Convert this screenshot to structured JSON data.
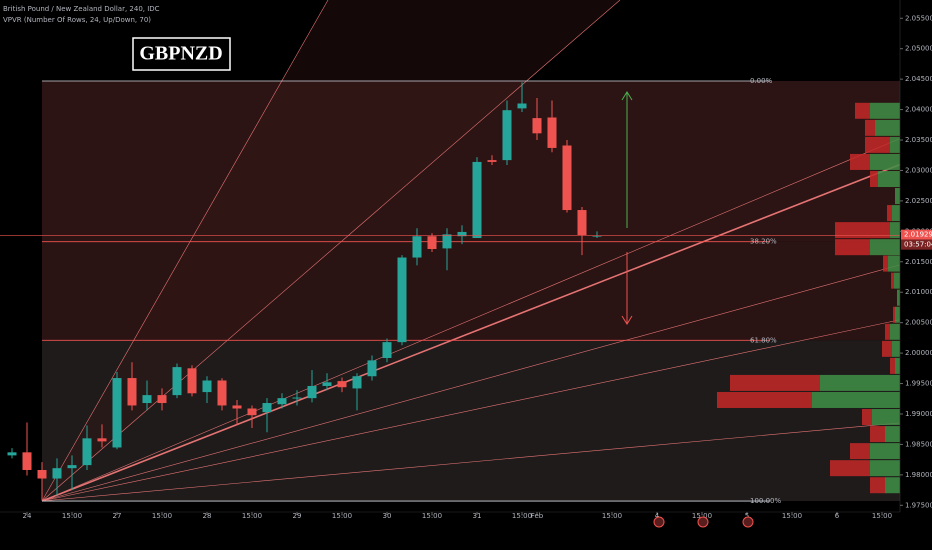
{
  "header": {
    "symbol_line": "British Pound / New Zealand Dollar, 240, IDC",
    "indicator_line": "VPVR (Number Of Rows, 24, Up/Down, 70)",
    "badge": "GBPNZD"
  },
  "chart_data": {
    "type": "candlestick",
    "up_color": "#26a69a",
    "down_color": "#ef5350",
    "open": [
      1.9832,
      1.9837,
      1.9808,
      1.9794,
      1.9811,
      1.9816,
      1.986,
      1.9845,
      1.9959,
      1.9918,
      1.9931,
      1.9931,
      1.9975,
      1.9936,
      1.9955,
      1.9914,
      1.9909,
      1.9903,
      1.9916,
      1.9926,
      1.9926,
      1.9946,
      1.9954,
      1.9942,
      1.9962,
      1.9992,
      2.0018,
      2.0157,
      2.0192,
      2.0172,
      2.0192,
      2.0189,
      2.0317,
      2.0317,
      2.0402,
      2.0386,
      2.0387,
      2.0341,
      2.0235,
      2.0192
    ],
    "high": [
      1.9844,
      1.9886,
      1.9821,
      1.9827,
      1.9832,
      1.9881,
      1.9883,
      1.9969,
      1.9985,
      1.9955,
      1.9942,
      1.9983,
      1.998,
      1.9962,
      1.9959,
      1.9923,
      1.9914,
      1.9926,
      1.9934,
      1.9939,
      1.9972,
      1.9967,
      1.996,
      1.9967,
      1.9996,
      2.0024,
      2.0161,
      2.0205,
      2.0197,
      2.0205,
      2.021,
      2.0322,
      2.0325,
      2.0415,
      2.0445,
      2.0419,
      2.0415,
      2.035,
      2.024,
      2.02
    ],
    "low": [
      1.9827,
      1.9799,
      1.9758,
      1.9766,
      1.9775,
      1.9808,
      1.9845,
      1.9842,
      1.9906,
      1.9906,
      1.9906,
      1.9926,
      1.9929,
      1.9918,
      1.9906,
      1.9881,
      1.9877,
      1.987,
      1.9909,
      1.9914,
      1.9919,
      1.9939,
      1.9936,
      1.9906,
      1.9955,
      1.9985,
      2.0013,
      2.0144,
      2.0166,
      2.0136,
      2.0179,
      2.0189,
      2.0309,
      2.0309,
      2.0396,
      2.035,
      2.033,
      2.0231,
      2.0161,
      2.0189
    ],
    "close": [
      1.9837,
      1.9808,
      1.9794,
      1.9811,
      1.9816,
      1.986,
      1.9855,
      1.9959,
      1.9914,
      1.9931,
      1.9918,
      1.9977,
      1.9934,
      1.9955,
      1.9914,
      1.9909,
      1.9898,
      1.9918,
      1.9926,
      1.9927,
      1.9946,
      1.9952,
      1.9944,
      1.9962,
      1.9988,
      2.0018,
      2.0157,
      2.0192,
      2.0171,
      2.0195,
      2.0199,
      2.0314,
      2.0314,
      2.0399,
      2.041,
      2.0361,
      2.0337,
      2.0235,
      2.0194,
      2.0193
    ],
    "xlim": [
      -0.8,
      59.2
    ],
    "xticks": [
      {
        "value": 1,
        "label": "24"
      },
      {
        "value": 4,
        "label": "15:00"
      },
      {
        "value": 7,
        "label": "27"
      },
      {
        "value": 10,
        "label": "15:00"
      },
      {
        "value": 13,
        "label": "28"
      },
      {
        "value": 16,
        "label": "15:00"
      },
      {
        "value": 19,
        "label": "29"
      },
      {
        "value": 22,
        "label": "15:00"
      },
      {
        "value": 25,
        "label": "30"
      },
      {
        "value": 28,
        "label": "15:00"
      },
      {
        "value": 31,
        "label": "31"
      },
      {
        "value": 34,
        "label": "15:00"
      },
      {
        "value": 35,
        "label": "Feb"
      },
      {
        "value": 40,
        "label": "15:00"
      },
      {
        "value": 43,
        "label": "4"
      },
      {
        "value": 46,
        "label": "15:00"
      },
      {
        "value": 49,
        "label": "5"
      },
      {
        "value": 52,
        "label": "15:00"
      },
      {
        "value": 55,
        "label": "6"
      },
      {
        "value": 58,
        "label": "15:00"
      }
    ],
    "ylim": [
      1.9739,
      2.058
    ],
    "yticks": [
      {
        "value": 1.975,
        "label": "1.97500"
      },
      {
        "value": 1.98,
        "label": "1.98000"
      },
      {
        "value": 1.985,
        "label": "1.98500"
      },
      {
        "value": 1.99,
        "label": "1.99000"
      },
      {
        "value": 1.995,
        "label": "1.99500"
      },
      {
        "value": 2.0,
        "label": "2.00000"
      },
      {
        "value": 2.005,
        "label": "2.00500"
      },
      {
        "value": 2.01,
        "label": "2.01000"
      },
      {
        "value": 2.015,
        "label": "2.01500"
      },
      {
        "value": 2.02,
        "label": "2.02000"
      },
      {
        "value": 2.025,
        "label": "2.02500"
      },
      {
        "value": 2.03,
        "label": "2.03000"
      },
      {
        "value": 2.035,
        "label": "2.03500"
      },
      {
        "value": 2.04,
        "label": "2.04000"
      },
      {
        "value": 2.045,
        "label": "2.04500"
      },
      {
        "value": 2.05,
        "label": "2.05000"
      },
      {
        "value": 2.055,
        "label": "2.05500"
      }
    ],
    "current_price": {
      "value": 2.01929,
      "label": "2.01929",
      "countdown": "03:57:04"
    },
    "fib_levels": [
      {
        "value": 2.0447,
        "label": "0.00%"
      },
      {
        "value": 2.0183,
        "label": "38.20%"
      },
      {
        "value": 2.0021,
        "label": "61.80%"
      },
      {
        "value": 1.9757,
        "label": "100.00%"
      }
    ],
    "volume_profile": {
      "prices": [
        2.0398,
        2.037,
        2.0342,
        2.0314,
        2.0286,
        2.0258,
        2.023,
        2.0202,
        2.0174,
        2.0147,
        2.0119,
        2.0091,
        2.0063,
        2.0035,
        2.0007,
        1.9979,
        1.9951,
        1.9923,
        1.9895,
        1.9867,
        1.9839,
        1.9811,
        1.9783
      ],
      "up": [
        30,
        25,
        10,
        30,
        22,
        5,
        8,
        10,
        30,
        12,
        6,
        3,
        5,
        10,
        8,
        5,
        80,
        88,
        28,
        15,
        30,
        30,
        15
      ],
      "down": [
        15,
        10,
        25,
        20,
        8,
        0,
        5,
        55,
        35,
        5,
        3,
        0,
        2,
        5,
        10,
        5,
        90,
        95,
        10,
        15,
        20,
        40,
        15
      ]
    }
  }
}
